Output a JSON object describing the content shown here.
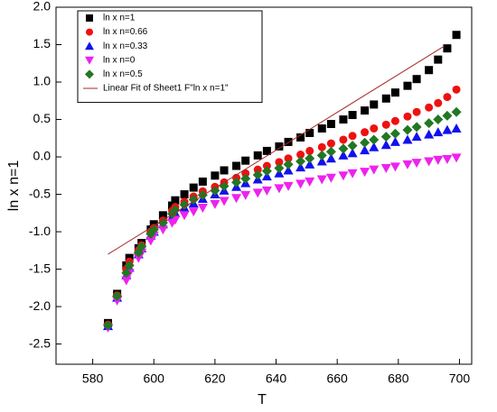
{
  "chart_data": {
    "type": "scatter",
    "xlabel": "T",
    "ylabel": "ln x n=1",
    "x": [
      585,
      588,
      591,
      592,
      595,
      596,
      599,
      600,
      603,
      606,
      607,
      610,
      613,
      616,
      620,
      623,
      627,
      630,
      634,
      637,
      641,
      644,
      648,
      651,
      655,
      658,
      662,
      665,
      669,
      672,
      676,
      679,
      683,
      686,
      690,
      693,
      696,
      699
    ],
    "series": [
      {
        "name": "ln x n=1",
        "color": "#000000",
        "marker": "square",
        "values": [
          -2.22,
          -1.83,
          -1.45,
          -1.35,
          -1.22,
          -1.15,
          -0.97,
          -0.9,
          -0.78,
          -0.65,
          -0.58,
          -0.5,
          -0.41,
          -0.33,
          -0.25,
          -0.18,
          -0.12,
          -0.05,
          0.02,
          0.08,
          0.14,
          0.2,
          0.26,
          0.32,
          0.38,
          0.44,
          0.5,
          0.56,
          0.62,
          0.7,
          0.78,
          0.86,
          0.95,
          1.04,
          1.16,
          1.3,
          1.45,
          1.63
        ]
      },
      {
        "name": "ln x n=0.66",
        "color": "#ee1111",
        "marker": "circle",
        "values": [
          -2.24,
          -1.85,
          -1.5,
          -1.4,
          -1.25,
          -1.18,
          -1.0,
          -0.95,
          -0.85,
          -0.72,
          -0.67,
          -0.6,
          -0.53,
          -0.46,
          -0.4,
          -0.34,
          -0.28,
          -0.22,
          -0.17,
          -0.12,
          -0.07,
          -0.02,
          0.03,
          0.08,
          0.13,
          0.18,
          0.23,
          0.28,
          0.33,
          0.38,
          0.43,
          0.48,
          0.54,
          0.6,
          0.66,
          0.72,
          0.8,
          0.9
        ]
      },
      {
        "name": "ln x n=0.33",
        "color": "#1111ee",
        "marker": "triangle-up",
        "values": [
          -2.26,
          -1.88,
          -1.58,
          -1.48,
          -1.3,
          -1.22,
          -1.05,
          -1.0,
          -0.9,
          -0.8,
          -0.75,
          -0.68,
          -0.62,
          -0.56,
          -0.5,
          -0.45,
          -0.4,
          -0.35,
          -0.3,
          -0.26,
          -0.22,
          -0.18,
          -0.14,
          -0.1,
          -0.06,
          -0.02,
          0.02,
          0.05,
          0.09,
          0.13,
          0.16,
          0.2,
          0.23,
          0.27,
          0.3,
          0.33,
          0.36,
          0.38
        ]
      },
      {
        "name": "ln x n=0",
        "color": "#ee22ee",
        "marker": "triangle-down",
        "values": [
          -2.28,
          -1.92,
          -1.65,
          -1.55,
          -1.35,
          -1.28,
          -1.12,
          -1.05,
          -0.97,
          -0.88,
          -0.84,
          -0.78,
          -0.73,
          -0.68,
          -0.63,
          -0.59,
          -0.55,
          -0.51,
          -0.48,
          -0.45,
          -0.42,
          -0.39,
          -0.36,
          -0.33,
          -0.3,
          -0.28,
          -0.25,
          -0.22,
          -0.2,
          -0.17,
          -0.15,
          -0.13,
          -0.1,
          -0.08,
          -0.06,
          -0.04,
          -0.03,
          -0.01
        ]
      },
      {
        "name": "ln x n=0.5",
        "color": "#227722",
        "marker": "diamond",
        "values": [
          -2.25,
          -1.86,
          -1.55,
          -1.45,
          -1.28,
          -1.2,
          -1.03,
          -0.97,
          -0.88,
          -0.76,
          -0.71,
          -0.64,
          -0.57,
          -0.51,
          -0.45,
          -0.39,
          -0.34,
          -0.29,
          -0.24,
          -0.19,
          -0.15,
          -0.1,
          -0.06,
          -0.02,
          0.02,
          0.07,
          0.11,
          0.15,
          0.19,
          0.23,
          0.27,
          0.31,
          0.36,
          0.4,
          0.45,
          0.5,
          0.55,
          0.6
        ]
      },
      {
        "name": "Linear Fit of Sheet1 F\"ln x n=1\"",
        "color": "#a52a2a",
        "marker": "line",
        "x": [
          585,
          695
        ],
        "values": [
          -1.3,
          1.48
        ]
      }
    ],
    "xlim": [
      568,
      704
    ],
    "ylim": [
      -2.77,
      2.0
    ],
    "xticks": [
      580,
      600,
      620,
      640,
      660,
      680,
      700
    ],
    "yticks": [
      -2.5,
      {
        "value": -2,
        "label": "-2.0"
      },
      -1.5,
      {
        "value": -1,
        "label": "-1.0"
      },
      -0.5,
      {
        "value": 0,
        "label": "0.0"
      },
      0.5,
      {
        "value": 1,
        "label": "1.0"
      },
      1.5,
      {
        "value": 2,
        "label": "2.0"
      }
    ],
    "grid": false,
    "legend": "upper left"
  }
}
